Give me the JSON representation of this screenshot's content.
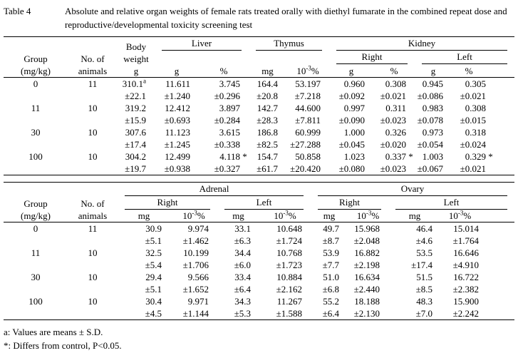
{
  "colors": {
    "text": "#000000",
    "background": "#ffffff"
  },
  "caption": {
    "label": "Table 4",
    "text": "Absolute and relative organ weights of female rats treated orally with diethyl fumarate in the combined repeat dose and reproductive/developmental toxicity screening test"
  },
  "table1": {
    "header": {
      "group": "Group\n(mg/kg)",
      "animals": "No. of\nanimals",
      "body_weight": "Body\nweight\ng",
      "liver": "Liver",
      "thymus": "Thymus",
      "kidney": "Kidney",
      "right": "Right",
      "left": "Left",
      "units": [
        "g",
        "%",
        "mg",
        "10^-3^%",
        "g",
        "%",
        "g",
        "%"
      ]
    },
    "rows": [
      {
        "group": "0",
        "n": "11",
        "mean": [
          "310.1^a",
          "11.611",
          "3.745",
          "164.4",
          "53.197",
          "0.960",
          "0.308",
          "0.945",
          "0.305"
        ],
        "sd": [
          "±22.1",
          "±1.240",
          "±0.296",
          "±20.8",
          "±7.218",
          "±0.092",
          "±0.021",
          "±0.086",
          "±0.021"
        ]
      },
      {
        "group": "11",
        "n": "10",
        "mean": [
          "319.2",
          "12.412",
          "3.897",
          "142.7",
          "44.600",
          "0.997",
          "0.311",
          "0.983",
          "0.308"
        ],
        "sd": [
          "±15.9",
          "±0.693",
          "±0.284",
          "±28.3",
          "±7.811",
          "±0.090",
          "±0.023",
          "±0.078",
          "±0.015"
        ]
      },
      {
        "group": "30",
        "n": "10",
        "mean": [
          "307.6",
          "11.123",
          "3.615",
          "186.8",
          "60.999",
          "1.000",
          "0.326",
          "0.973",
          "0.318"
        ],
        "sd": [
          "±17.4",
          "±1.245",
          "±0.338",
          "±82.5",
          "±27.288",
          "±0.045",
          "±0.020",
          "±0.054",
          "±0.024"
        ]
      },
      {
        "group": "100",
        "n": "10",
        "mean": [
          "304.2",
          "12.499",
          "4.118 *",
          "154.7",
          "50.858",
          "1.023",
          "0.337 *",
          "1.003",
          "0.329 *"
        ],
        "sd": [
          "±19.7",
          "±0.938",
          "±0.327",
          "±61.7",
          "±20.420",
          "±0.080",
          "±0.023",
          "±0.067",
          "±0.021"
        ]
      }
    ]
  },
  "table2": {
    "header": {
      "group": "Group\n(mg/kg)",
      "animals": "No. of\nanimals",
      "adrenal": "Adrenal",
      "ovary": "Ovary",
      "right": "Right",
      "left": "Left",
      "units": [
        "mg",
        "10^-3^%",
        "mg",
        "10^-3^%",
        "mg",
        "10^-3^%",
        "mg",
        "10^-3^%"
      ]
    },
    "rows": [
      {
        "group": "0",
        "n": "11",
        "mean": [
          "30.9",
          "9.974",
          "33.1",
          "10.648",
          "49.7",
          "15.968",
          "46.4",
          "15.014"
        ],
        "sd": [
          "±5.1",
          "±1.462",
          "±6.3",
          "±1.724",
          "±8.7",
          "±2.048",
          "±4.6",
          "±1.764"
        ]
      },
      {
        "group": "11",
        "n": "10",
        "mean": [
          "32.5",
          "10.199",
          "34.4",
          "10.768",
          "53.9",
          "16.882",
          "53.5",
          "16.646"
        ],
        "sd": [
          "±5.4",
          "±1.706",
          "±6.0",
          "±1.723",
          "±7.7",
          "±2.198",
          "±17.4",
          "±4.910"
        ]
      },
      {
        "group": "30",
        "n": "10",
        "mean": [
          "29.4",
          "9.566",
          "33.4",
          "10.884",
          "51.0",
          "16.634",
          "51.5",
          "16.722"
        ],
        "sd": [
          "±5.1",
          "±1.652",
          "±6.4",
          "±2.162",
          "±6.8",
          "±2.440",
          "±8.5",
          "±2.382"
        ]
      },
      {
        "group": "100",
        "n": "10",
        "mean": [
          "30.4",
          "9.971",
          "34.3",
          "11.267",
          "55.2",
          "18.188",
          "48.3",
          "15.900"
        ],
        "sd": [
          "±4.5",
          "±1.144",
          "±5.3",
          "±1.588",
          "±6.4",
          "±2.130",
          "±7.0",
          "±2.242"
        ]
      }
    ]
  },
  "footnotes": [
    "a: Values are means ± S.D.",
    "*: Differs from control, P<0.05."
  ]
}
